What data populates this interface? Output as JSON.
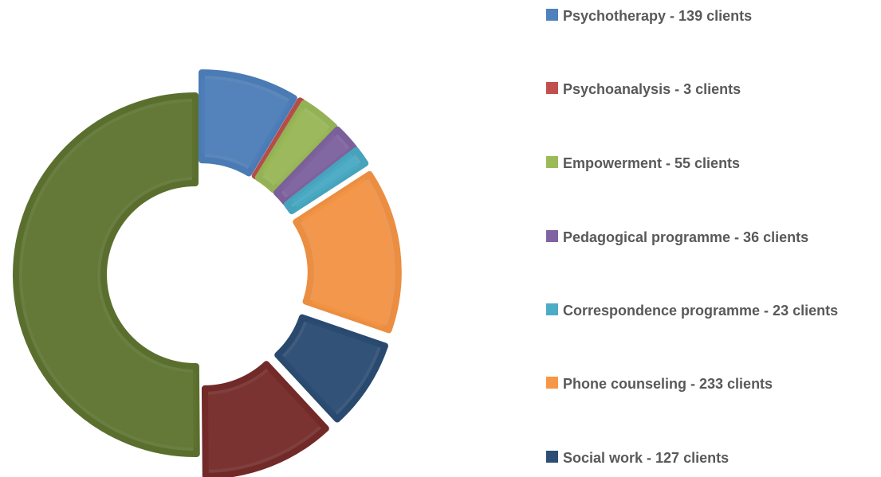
{
  "chart_data": {
    "type": "donut",
    "categories": [
      "Psychotherapy - 139 clients",
      "Psychoanalysis - 3 clients",
      "Empowerment - 55 clients",
      "Pedagogical programme - 36 clients",
      "Correspondence programme - 23 clients",
      "Phone counseling - 233 clients",
      "Social work - 127 clients",
      null,
      null
    ],
    "values": [
      139,
      3,
      55,
      36,
      23,
      233,
      127,
      190,
      810
    ],
    "colors": [
      "#4f81bd",
      "#c0504d",
      "#9bbb59",
      "#8064a2",
      "#4bacc6",
      "#f79646",
      "#2c4d75",
      "#772c2a",
      "#5f7530"
    ],
    "legend": "right"
  }
}
